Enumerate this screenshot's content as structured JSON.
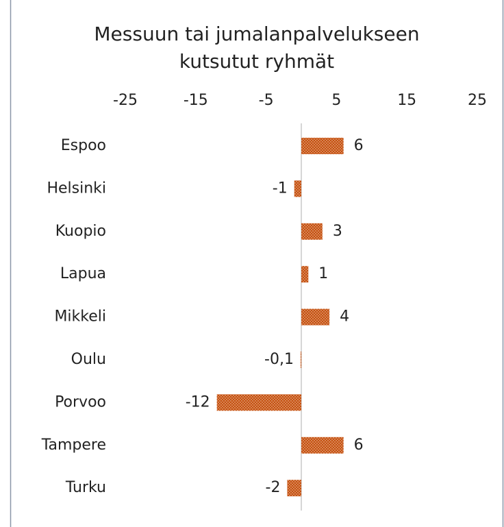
{
  "chart_data": {
    "type": "barh",
    "title": "Messuun tai jumalanpalvelukseen kutsutut ryhmät",
    "categories": [
      "Espoo",
      "Helsinki",
      "Kuopio",
      "Lapua",
      "Mikkeli",
      "Oulu",
      "Porvoo",
      "Tampere",
      "Turku"
    ],
    "values": [
      6,
      -1,
      3,
      1,
      4,
      -0.1,
      -12,
      6,
      -2
    ],
    "value_labels": [
      "6",
      "-1",
      "3",
      "1",
      "4",
      "-0,1",
      "-12",
      "6",
      "-2"
    ],
    "color": "#c5500f",
    "xlim": [
      -25,
      25
    ],
    "xticks": [
      -25,
      -15,
      -5,
      5,
      15,
      25
    ],
    "grid": false
  }
}
